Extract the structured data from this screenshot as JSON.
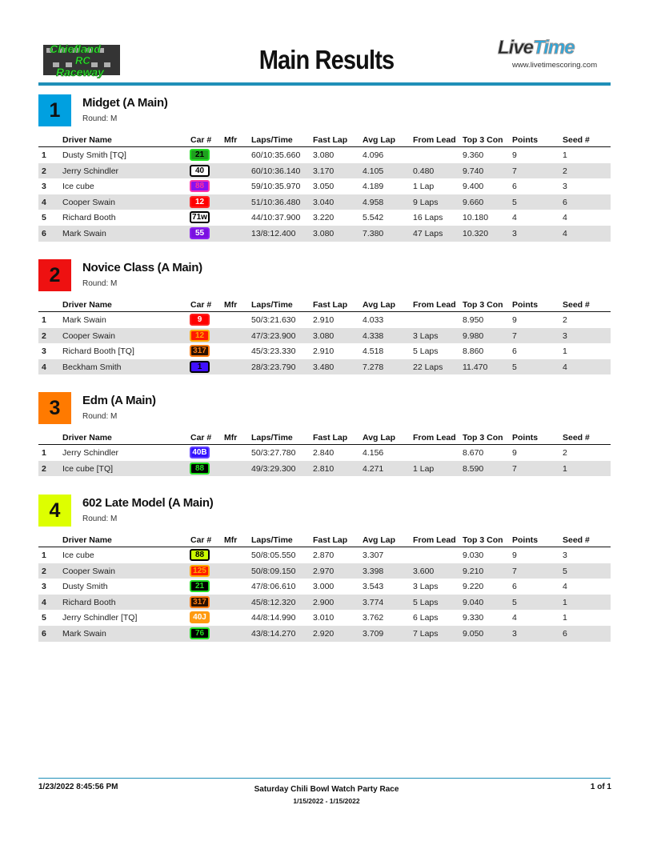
{
  "header": {
    "title": "Main Results",
    "left_logo_text": "Chiefland RC Raceway",
    "right_logo": {
      "live": "Live",
      "time": "Time"
    },
    "url": "www.livetimescoring.com"
  },
  "columns": [
    "Driver Name",
    "Car #",
    "Mfr",
    "Laps/Time",
    "Fast Lap",
    "Avg Lap",
    "From Lead",
    "Top 3 Con",
    "Points",
    "Seed #"
  ],
  "sections": [
    {
      "num": "1",
      "color": "#00a0e0",
      "title": "Midget (A Main)",
      "round": "Round: M",
      "rows": [
        {
          "pos": "1",
          "driver": "Dusty Smith [TQ]",
          "car": "21",
          "badge": {
            "bg": "#1fa01f",
            "fg": "#000000",
            "border": "#22e022"
          },
          "mfr": "",
          "laps": "60/10:35.660",
          "fast": "3.080",
          "avg": "4.096",
          "lead": "",
          "top3": "9.360",
          "points": "9",
          "seed": "1"
        },
        {
          "pos": "2",
          "driver": "Jerry Schindler",
          "car": "40",
          "badge": {
            "bg": "#ffffff",
            "fg": "#000000",
            "border": "#000000"
          },
          "mfr": "",
          "laps": "60/10:36.140",
          "fast": "3.170",
          "avg": "4.105",
          "lead": "0.480",
          "top3": "9.740",
          "points": "7",
          "seed": "2"
        },
        {
          "pos": "3",
          "driver": "Ice cube",
          "car": "88",
          "badge": {
            "bg": "#8a10f0",
            "fg": "#ff3399",
            "border": "#ff33aa"
          },
          "mfr": "",
          "laps": "59/10:35.970",
          "fast": "3.050",
          "avg": "4.189",
          "lead": "1 Lap",
          "top3": "9.400",
          "points": "6",
          "seed": "3"
        },
        {
          "pos": "4",
          "driver": "Cooper Swain",
          "car": "12",
          "badge": {
            "bg": "#ff0000",
            "fg": "#ffffff",
            "border": "#ff2020"
          },
          "mfr": "",
          "laps": "51/10:36.480",
          "fast": "3.040",
          "avg": "4.958",
          "lead": "9 Laps",
          "top3": "9.660",
          "points": "5",
          "seed": "6"
        },
        {
          "pos": "5",
          "driver": "Richard Booth",
          "car": "71w",
          "badge": {
            "bg": "#ffffff",
            "fg": "#000000",
            "border": "#000000"
          },
          "mfr": "",
          "laps": "44/10:37.900",
          "fast": "3.220",
          "avg": "5.542",
          "lead": "16 Laps",
          "top3": "10.180",
          "points": "4",
          "seed": "4"
        },
        {
          "pos": "6",
          "driver": "Mark Swain",
          "car": "55",
          "badge": {
            "bg": "#7a10e0",
            "fg": "#ffffff",
            "border": "#8a20f0"
          },
          "mfr": "",
          "laps": "13/8:12.400",
          "fast": "3.080",
          "avg": "7.380",
          "lead": "47 Laps",
          "top3": "10.320",
          "points": "3",
          "seed": "4"
        }
      ]
    },
    {
      "num": "2",
      "color": "#ee1111",
      "title": "Novice Class (A Main)",
      "round": "Round: M",
      "rows": [
        {
          "pos": "1",
          "driver": "Mark Swain",
          "car": "9",
          "badge": {
            "bg": "#ff0000",
            "fg": "#ffffff",
            "border": "#ff2020"
          },
          "mfr": "",
          "laps": "50/3:21.630",
          "fast": "2.910",
          "avg": "4.033",
          "lead": "",
          "top3": "8.950",
          "points": "9",
          "seed": "2"
        },
        {
          "pos": "2",
          "driver": "Cooper Swain",
          "car": "12",
          "badge": {
            "bg": "#ff1a00",
            "fg": "#ffaa00",
            "border": "#ffaa00"
          },
          "mfr": "",
          "laps": "47/3:23.900",
          "fast": "3.080",
          "avg": "4.338",
          "lead": "3 Laps",
          "top3": "9.980",
          "points": "7",
          "seed": "3"
        },
        {
          "pos": "3",
          "driver": "Richard Booth [TQ]",
          "car": "317",
          "badge": {
            "bg": "#2a1000",
            "fg": "#ff7a10",
            "border": "#ff7a10"
          },
          "mfr": "",
          "laps": "45/3:23.330",
          "fast": "2.910",
          "avg": "4.518",
          "lead": "5 Laps",
          "top3": "8.860",
          "points": "6",
          "seed": "1"
        },
        {
          "pos": "4",
          "driver": "Beckham Smith",
          "car": "1",
          "badge": {
            "bg": "#4010ff",
            "fg": "#000000",
            "border": "#000000"
          },
          "mfr": "",
          "laps": "28/3:23.790",
          "fast": "3.480",
          "avg": "7.278",
          "lead": "22 Laps",
          "top3": "11.470",
          "points": "5",
          "seed": "4"
        }
      ]
    },
    {
      "num": "3",
      "color": "#ff7a00",
      "title": "Edm (A Main)",
      "round": "Round: M",
      "rows": [
        {
          "pos": "1",
          "driver": "Jerry Schindler",
          "car": "40B",
          "badge": {
            "bg": "#3010ff",
            "fg": "#ffffff",
            "border": "#6040ff"
          },
          "mfr": "",
          "laps": "50/3:27.780",
          "fast": "2.840",
          "avg": "4.156",
          "lead": "",
          "top3": "8.670",
          "points": "9",
          "seed": "2"
        },
        {
          "pos": "2",
          "driver": "Ice cube  [TQ]",
          "car": "88",
          "badge": {
            "bg": "#000000",
            "fg": "#22e022",
            "border": "#22e022"
          },
          "mfr": "",
          "laps": "49/3:29.300",
          "fast": "2.810",
          "avg": "4.271",
          "lead": "1 Lap",
          "top3": "8.590",
          "points": "7",
          "seed": "1"
        }
      ]
    },
    {
      "num": "4",
      "color": "#ddff00",
      "title": "602 Late Model (A Main)",
      "round": "Round: M",
      "rows": [
        {
          "pos": "1",
          "driver": "Ice cube",
          "car": "88",
          "badge": {
            "bg": "#ccff00",
            "fg": "#000000",
            "border": "#000000"
          },
          "mfr": "",
          "laps": "50/8:05.550",
          "fast": "2.870",
          "avg": "3.307",
          "lead": "",
          "top3": "9.030",
          "points": "9",
          "seed": "3"
        },
        {
          "pos": "2",
          "driver": "Cooper Swain",
          "car": "125",
          "badge": {
            "bg": "#ff1a00",
            "fg": "#ffaa00",
            "border": "#ffaa00"
          },
          "mfr": "",
          "laps": "50/8:09.150",
          "fast": "2.970",
          "avg": "3.398",
          "lead": "3.600",
          "top3": "9.210",
          "points": "7",
          "seed": "5"
        },
        {
          "pos": "3",
          "driver": "Dusty Smith",
          "car": "21",
          "badge": {
            "bg": "#000000",
            "fg": "#22e022",
            "border": "#22e022"
          },
          "mfr": "",
          "laps": "47/8:06.610",
          "fast": "3.000",
          "avg": "3.543",
          "lead": "3 Laps",
          "top3": "9.220",
          "points": "6",
          "seed": "4"
        },
        {
          "pos": "4",
          "driver": "Richard Booth",
          "car": "317",
          "badge": {
            "bg": "#2a1000",
            "fg": "#ff7a10",
            "border": "#ff7a10"
          },
          "mfr": "",
          "laps": "45/8:12.320",
          "fast": "2.900",
          "avg": "3.774",
          "lead": "5 Laps",
          "top3": "9.040",
          "points": "5",
          "seed": "1"
        },
        {
          "pos": "5",
          "driver": "Jerry Schindler [TQ]",
          "car": "40J",
          "badge": {
            "bg": "#ff9a10",
            "fg": "#ffffff",
            "border": "#ff9a10"
          },
          "mfr": "",
          "laps": "44/8:14.990",
          "fast": "3.010",
          "avg": "3.762",
          "lead": "6 Laps",
          "top3": "9.330",
          "points": "4",
          "seed": "1"
        },
        {
          "pos": "6",
          "driver": "Mark Swain",
          "car": "76",
          "badge": {
            "bg": "#000000",
            "fg": "#22e022",
            "border": "#22e022"
          },
          "mfr": "",
          "laps": "43/8:14.270",
          "fast": "2.920",
          "avg": "3.709",
          "lead": "7 Laps",
          "top3": "9.050",
          "points": "3",
          "seed": "6"
        }
      ]
    }
  ],
  "footer": {
    "printed": "1/23/2022 8:45:56 PM",
    "event": "Saturday Chili Bowl Watch Party Race",
    "dates": "1/15/2022 - 1/15/2022",
    "page": "1 of 1"
  }
}
